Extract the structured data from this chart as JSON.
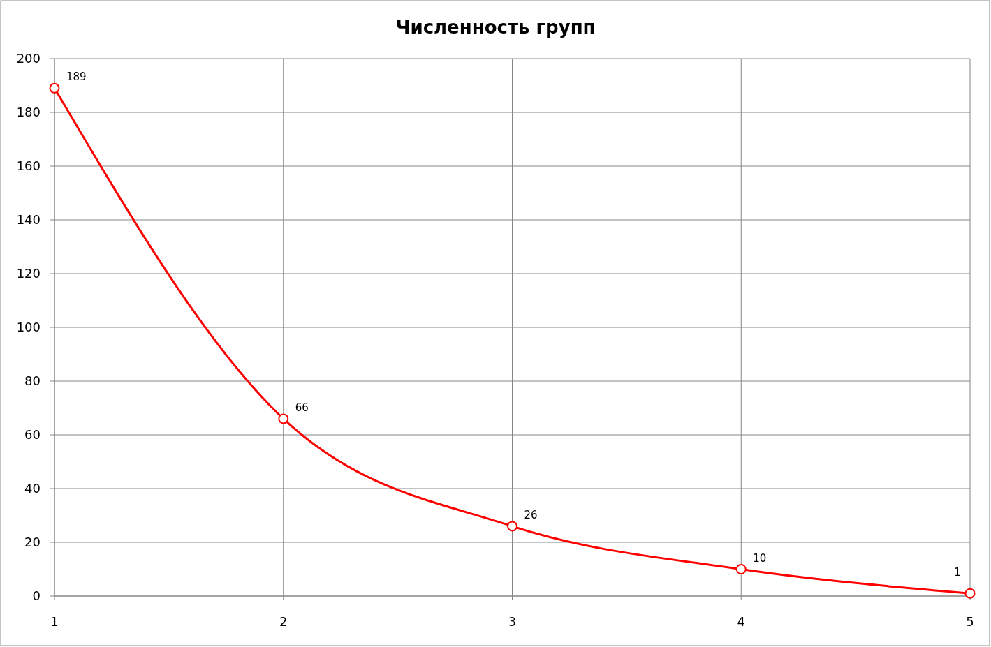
{
  "chart_data": {
    "type": "line",
    "title": "Численность групп",
    "x": [
      1,
      2,
      3,
      4,
      5
    ],
    "series": [
      {
        "color": "#ff0000",
        "values": [
          189,
          66,
          26,
          10,
          1
        ]
      }
    ],
    "xlim": [
      1,
      5
    ],
    "xticks": [
      1,
      2,
      3,
      4,
      5
    ],
    "ylim": [
      0,
      200
    ],
    "yticks": [
      0,
      20,
      40,
      60,
      80,
      100,
      120,
      140,
      160,
      180,
      200
    ],
    "grid": true,
    "marker": "circle",
    "data_labels": true
  }
}
